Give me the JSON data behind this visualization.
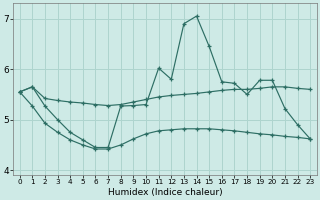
{
  "xlabel": "Humidex (Indice chaleur)",
  "xlim": [
    -0.5,
    23.5
  ],
  "ylim": [
    3.9,
    7.3
  ],
  "yticks": [
    4,
    5,
    6,
    7
  ],
  "xticks": [
    0,
    1,
    2,
    3,
    4,
    5,
    6,
    7,
    8,
    9,
    10,
    11,
    12,
    13,
    14,
    15,
    16,
    17,
    18,
    19,
    20,
    21,
    22,
    23
  ],
  "background_color": "#ceeae6",
  "grid_color": "#aed4ce",
  "line_color": "#2d6e64",
  "series1_x": [
    0,
    1,
    2,
    3,
    4,
    5,
    6,
    7,
    8,
    9,
    10,
    11,
    12,
    13,
    14,
    15,
    16,
    17,
    18,
    19,
    20,
    21,
    22,
    23
  ],
  "series1_y": [
    5.55,
    5.65,
    5.42,
    5.38,
    5.35,
    5.33,
    5.3,
    5.28,
    5.3,
    5.35,
    5.4,
    5.45,
    5.48,
    5.5,
    5.52,
    5.55,
    5.58,
    5.6,
    5.6,
    5.62,
    5.65,
    5.65,
    5.62,
    5.6
  ],
  "series2_x": [
    0,
    1,
    2,
    3,
    4,
    5,
    6,
    7,
    8,
    9,
    10,
    11,
    12,
    13,
    14,
    15,
    16,
    17,
    18,
    19,
    20,
    21,
    22,
    23
  ],
  "series2_y": [
    5.55,
    5.65,
    5.27,
    5.0,
    4.75,
    4.6,
    4.45,
    4.45,
    5.27,
    5.28,
    5.3,
    6.02,
    5.8,
    6.9,
    7.05,
    6.45,
    5.75,
    5.72,
    5.5,
    5.78,
    5.78,
    5.22,
    4.9,
    4.62
  ],
  "series3_x": [
    0,
    1,
    2,
    3,
    4,
    5,
    6,
    7,
    8,
    9,
    10,
    11,
    12,
    13,
    14,
    15,
    16,
    17,
    18,
    19,
    20,
    21,
    22,
    23
  ],
  "series3_y": [
    5.55,
    5.27,
    4.93,
    4.75,
    4.6,
    4.5,
    4.42,
    4.42,
    4.5,
    4.62,
    4.72,
    4.78,
    4.8,
    4.82,
    4.82,
    4.82,
    4.8,
    4.78,
    4.75,
    4.72,
    4.7,
    4.67,
    4.65,
    4.62
  ]
}
